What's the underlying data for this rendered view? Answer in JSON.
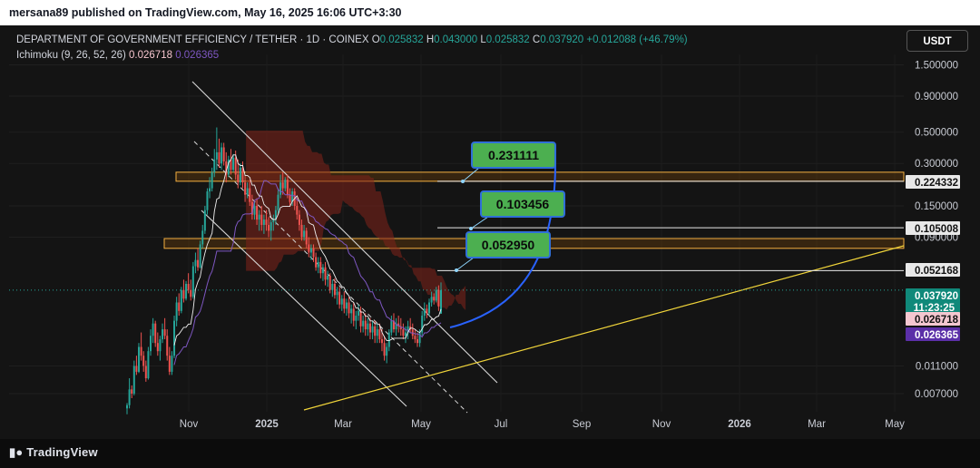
{
  "header": {
    "published": "mersana89 published on TradingView.com, May 16, 2025 16:06 UTC+3:30"
  },
  "legend": {
    "symbol": "DEPARTMENT OF GOVERNMENT EFFICIENCY / TETHER · 1D · COINEX",
    "o_label": "O",
    "o_value": "0.025832",
    "h_label": "H",
    "h_value": "0.043000",
    "l_label": "L",
    "l_value": "0.025832",
    "c_label": "C",
    "c_value": "0.037920",
    "change": "+0.012088 (+46.79%)",
    "indicator": "Ichimoku (9, 26, 52, 26)",
    "ind_value1": "0.026718",
    "ind_value2": "0.026365"
  },
  "currency_button": "USDT",
  "footer": {
    "brand": "TradingView"
  },
  "colors": {
    "up": "#26a69a",
    "down": "#ef5350",
    "conversion": "#ec8fa0",
    "base": "#7e57c2",
    "cloud": "#7a2418",
    "zone": "#f5b041",
    "trend": "#f0d43a",
    "target_box": "#4caf50",
    "arrow": "#2962ff"
  },
  "chart_data": {
    "type": "candlestick",
    "y_scale": "log",
    "y_ticks": [
      "1.500000",
      "0.900000",
      "0.500000",
      "0.300000",
      "0.150000",
      "0.090000",
      "0.011000",
      "0.007000"
    ],
    "x_ticks": [
      "Nov",
      "2025",
      "Mar",
      "May",
      "Jul",
      "Sep",
      "Nov",
      "2026",
      "Mar",
      "May"
    ],
    "price_labels": [
      {
        "text": "0.224332",
        "kind": "level"
      },
      {
        "text": "0.105008",
        "kind": "level"
      },
      {
        "text": "0.052168",
        "kind": "level"
      },
      {
        "text": "0.037920",
        "kind": "last",
        "sub": "11:23:25"
      },
      {
        "text": "0.026718",
        "kind": "conversion"
      },
      {
        "text": "0.026365",
        "kind": "base"
      }
    ],
    "targets": [
      "0.231111",
      "0.103456",
      "0.052950"
    ],
    "zones": [
      {
        "low": 0.224332,
        "high": 0.26
      },
      {
        "low": 0.075,
        "high": 0.088
      }
    ],
    "candles": [
      [
        0.0055,
        0.006,
        0.005,
        0.0058
      ],
      [
        0.0058,
        0.009,
        0.0055,
        0.0075
      ],
      [
        0.0075,
        0.008,
        0.0065,
        0.007
      ],
      [
        0.007,
        0.012,
        0.0068,
        0.011
      ],
      [
        0.011,
        0.013,
        0.0095,
        0.01
      ],
      [
        0.01,
        0.016,
        0.0098,
        0.015
      ],
      [
        0.015,
        0.019,
        0.012,
        0.013
      ],
      [
        0.013,
        0.014,
        0.01,
        0.011
      ],
      [
        0.011,
        0.012,
        0.0085,
        0.009
      ],
      [
        0.009,
        0.015,
        0.0088,
        0.014
      ],
      [
        0.014,
        0.02,
        0.013,
        0.018
      ],
      [
        0.018,
        0.024,
        0.016,
        0.022
      ],
      [
        0.022,
        0.023,
        0.015,
        0.016
      ],
      [
        0.016,
        0.019,
        0.013,
        0.014
      ],
      [
        0.014,
        0.018,
        0.012,
        0.017
      ],
      [
        0.017,
        0.022,
        0.016,
        0.02
      ],
      [
        0.02,
        0.024,
        0.017,
        0.018
      ],
      [
        0.018,
        0.02,
        0.012,
        0.013
      ],
      [
        0.013,
        0.015,
        0.0095,
        0.01
      ],
      [
        0.01,
        0.014,
        0.0095,
        0.013
      ],
      [
        0.013,
        0.025,
        0.0125,
        0.023
      ],
      [
        0.023,
        0.034,
        0.021,
        0.031
      ],
      [
        0.031,
        0.036,
        0.025,
        0.027
      ],
      [
        0.027,
        0.04,
        0.026,
        0.038
      ],
      [
        0.038,
        0.045,
        0.031,
        0.033
      ],
      [
        0.033,
        0.044,
        0.032,
        0.042
      ],
      [
        0.042,
        0.05,
        0.036,
        0.038
      ],
      [
        0.038,
        0.045,
        0.032,
        0.034
      ],
      [
        0.034,
        0.06,
        0.033,
        0.056
      ],
      [
        0.056,
        0.07,
        0.05,
        0.062
      ],
      [
        0.062,
        0.075,
        0.052,
        0.055
      ],
      [
        0.055,
        0.085,
        0.054,
        0.08
      ],
      [
        0.08,
        0.11,
        0.075,
        0.1
      ],
      [
        0.1,
        0.15,
        0.095,
        0.14
      ],
      [
        0.14,
        0.2,
        0.13,
        0.19
      ],
      [
        0.19,
        0.24,
        0.17,
        0.2
      ],
      [
        0.2,
        0.28,
        0.19,
        0.26
      ],
      [
        0.26,
        0.38,
        0.24,
        0.32
      ],
      [
        0.32,
        0.54,
        0.27,
        0.36
      ],
      [
        0.36,
        0.45,
        0.28,
        0.3
      ],
      [
        0.3,
        0.42,
        0.27,
        0.39
      ],
      [
        0.39,
        0.42,
        0.29,
        0.31
      ],
      [
        0.31,
        0.36,
        0.22,
        0.25
      ],
      [
        0.25,
        0.34,
        0.24,
        0.32
      ],
      [
        0.32,
        0.38,
        0.25,
        0.27
      ],
      [
        0.27,
        0.35,
        0.26,
        0.33
      ],
      [
        0.33,
        0.37,
        0.23,
        0.25
      ],
      [
        0.25,
        0.32,
        0.2,
        0.22
      ],
      [
        0.22,
        0.3,
        0.21,
        0.28
      ],
      [
        0.28,
        0.31,
        0.2,
        0.22
      ],
      [
        0.22,
        0.25,
        0.16,
        0.18
      ],
      [
        0.18,
        0.22,
        0.17,
        0.2
      ],
      [
        0.2,
        0.23,
        0.15,
        0.16
      ],
      [
        0.16,
        0.18,
        0.12,
        0.13
      ],
      [
        0.13,
        0.16,
        0.12,
        0.15
      ],
      [
        0.15,
        0.17,
        0.11,
        0.12
      ],
      [
        0.12,
        0.14,
        0.1,
        0.13
      ],
      [
        0.13,
        0.15,
        0.1,
        0.11
      ],
      [
        0.11,
        0.13,
        0.095,
        0.12
      ],
      [
        0.12,
        0.14,
        0.1,
        0.11
      ],
      [
        0.11,
        0.125,
        0.09,
        0.1
      ],
      [
        0.1,
        0.12,
        0.085,
        0.115
      ],
      [
        0.115,
        0.13,
        0.1,
        0.12
      ],
      [
        0.12,
        0.15,
        0.11,
        0.14
      ],
      [
        0.14,
        0.2,
        0.13,
        0.18
      ],
      [
        0.18,
        0.25,
        0.17,
        0.22
      ],
      [
        0.22,
        0.26,
        0.18,
        0.2
      ],
      [
        0.2,
        0.24,
        0.19,
        0.23
      ],
      [
        0.23,
        0.25,
        0.17,
        0.18
      ],
      [
        0.18,
        0.2,
        0.15,
        0.16
      ],
      [
        0.16,
        0.2,
        0.15,
        0.19
      ],
      [
        0.19,
        0.2,
        0.14,
        0.15
      ],
      [
        0.15,
        0.17,
        0.12,
        0.13
      ],
      [
        0.13,
        0.14,
        0.1,
        0.11
      ],
      [
        0.11,
        0.12,
        0.085,
        0.09
      ],
      [
        0.09,
        0.11,
        0.085,
        0.1
      ],
      [
        0.1,
        0.105,
        0.075,
        0.08
      ],
      [
        0.08,
        0.09,
        0.065,
        0.07
      ],
      [
        0.07,
        0.08,
        0.062,
        0.075
      ],
      [
        0.075,
        0.08,
        0.06,
        0.065
      ],
      [
        0.065,
        0.07,
        0.052,
        0.055
      ],
      [
        0.055,
        0.065,
        0.05,
        0.06
      ],
      [
        0.06,
        0.065,
        0.046,
        0.05
      ],
      [
        0.05,
        0.058,
        0.044,
        0.055
      ],
      [
        0.055,
        0.06,
        0.041,
        0.045
      ],
      [
        0.045,
        0.052,
        0.04,
        0.048
      ],
      [
        0.048,
        0.05,
        0.036,
        0.038
      ],
      [
        0.038,
        0.045,
        0.034,
        0.042
      ],
      [
        0.042,
        0.046,
        0.033,
        0.035
      ],
      [
        0.035,
        0.04,
        0.03,
        0.037
      ],
      [
        0.037,
        0.04,
        0.028,
        0.03
      ],
      [
        0.03,
        0.035,
        0.027,
        0.033
      ],
      [
        0.033,
        0.037,
        0.026,
        0.028
      ],
      [
        0.028,
        0.033,
        0.025,
        0.031
      ],
      [
        0.031,
        0.034,
        0.024,
        0.026
      ],
      [
        0.026,
        0.03,
        0.022,
        0.028
      ],
      [
        0.028,
        0.031,
        0.021,
        0.023
      ],
      [
        0.023,
        0.027,
        0.02,
        0.025
      ],
      [
        0.025,
        0.03,
        0.023,
        0.027
      ],
      [
        0.027,
        0.029,
        0.019,
        0.021
      ],
      [
        0.021,
        0.025,
        0.019,
        0.023
      ],
      [
        0.023,
        0.026,
        0.018,
        0.02
      ],
      [
        0.02,
        0.024,
        0.018,
        0.022
      ],
      [
        0.022,
        0.024,
        0.017,
        0.019
      ],
      [
        0.019,
        0.023,
        0.017,
        0.021
      ],
      [
        0.021,
        0.023,
        0.016,
        0.018
      ],
      [
        0.018,
        0.022,
        0.016,
        0.02
      ],
      [
        0.02,
        0.022,
        0.016,
        0.017
      ],
      [
        0.017,
        0.02,
        0.014,
        0.016
      ],
      [
        0.016,
        0.018,
        0.012,
        0.013
      ],
      [
        0.013,
        0.016,
        0.0115,
        0.015
      ],
      [
        0.015,
        0.02,
        0.014,
        0.019
      ],
      [
        0.019,
        0.025,
        0.018,
        0.023
      ],
      [
        0.023,
        0.026,
        0.019,
        0.02
      ],
      [
        0.02,
        0.024,
        0.018,
        0.022
      ],
      [
        0.022,
        0.025,
        0.019,
        0.021
      ],
      [
        0.021,
        0.024,
        0.018,
        0.02
      ],
      [
        0.02,
        0.022,
        0.017,
        0.018
      ],
      [
        0.018,
        0.021,
        0.016,
        0.019
      ],
      [
        0.019,
        0.023,
        0.017,
        0.021
      ],
      [
        0.021,
        0.024,
        0.019,
        0.02
      ],
      [
        0.02,
        0.022,
        0.017,
        0.018
      ],
      [
        0.018,
        0.02,
        0.016,
        0.017
      ],
      [
        0.017,
        0.019,
        0.015,
        0.016
      ],
      [
        0.016,
        0.02,
        0.015,
        0.019
      ],
      [
        0.019,
        0.027,
        0.018,
        0.025
      ],
      [
        0.025,
        0.031,
        0.023,
        0.028
      ],
      [
        0.028,
        0.03,
        0.024,
        0.026
      ],
      [
        0.026,
        0.033,
        0.025,
        0.031
      ],
      [
        0.031,
        0.037,
        0.029,
        0.034
      ],
      [
        0.034,
        0.036,
        0.03,
        0.032
      ],
      [
        0.032,
        0.04,
        0.031,
        0.038
      ],
      [
        0.038,
        0.041,
        0.027,
        0.029
      ],
      [
        0.025832,
        0.043,
        0.025832,
        0.03792
      ]
    ]
  }
}
